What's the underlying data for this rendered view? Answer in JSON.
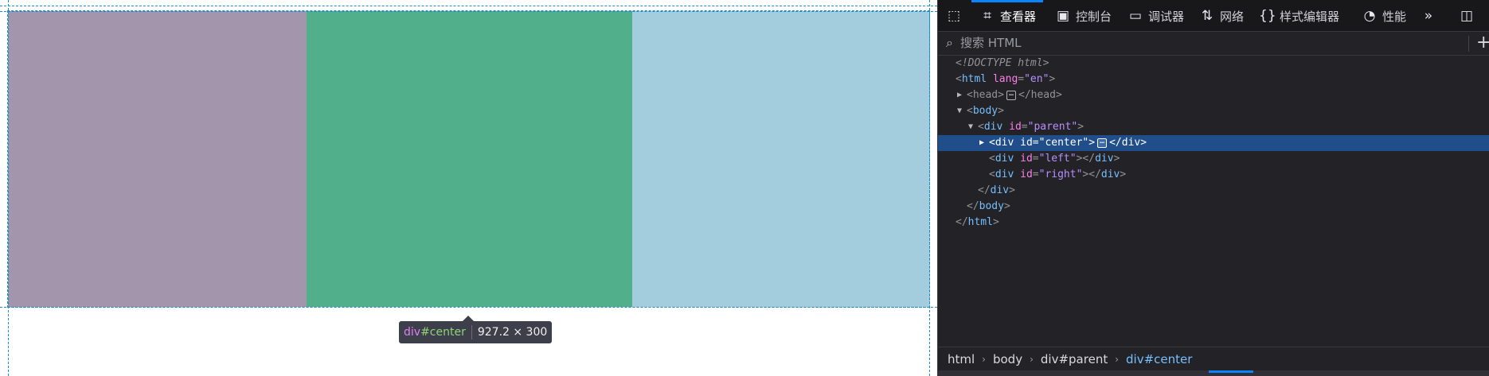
{
  "page": {
    "boxes": {
      "left_color": "#a395ab",
      "center_color": "#52af8c",
      "right_color": "#a3ccdd"
    },
    "tooltip": {
      "tag": "div",
      "id": "#center",
      "dims": "927.2 × 300"
    }
  },
  "devtools": {
    "toolbar": {
      "picker_icon": "element-picker-icon",
      "tabs": [
        {
          "label": "查看器",
          "icon": "inspector-icon"
        },
        {
          "label": "控制台",
          "icon": "console-icon"
        },
        {
          "label": "调试器",
          "icon": "debugger-icon"
        },
        {
          "label": "网络",
          "icon": "network-icon"
        },
        {
          "label": "样式编辑器",
          "icon": "style-editor-icon"
        },
        {
          "label": "性能",
          "icon": "performance-icon"
        }
      ],
      "overflow_icon": "chevron-double-right-icon",
      "dock_icon": "dock-side-icon",
      "colors": {
        "active_tab": "#0a84ff"
      }
    },
    "search": {
      "placeholder": "搜索 HTML",
      "value": ""
    },
    "tree": {
      "doctype": "<!DOCTYPE html>",
      "html_open_tag": "html",
      "html_attr_name": "lang",
      "html_attr_value": "\"en\"",
      "head_tag": "head",
      "body_tag": "body",
      "div_tag": "div",
      "id_attr": "id",
      "parent_val": "\"parent\"",
      "center_val": "\"center\"",
      "left_val": "\"left\"",
      "right_val": "\"right\"",
      "ellipsis": "…"
    },
    "breadcrumb": [
      "html",
      "body",
      "div#parent",
      "div#center"
    ]
  }
}
